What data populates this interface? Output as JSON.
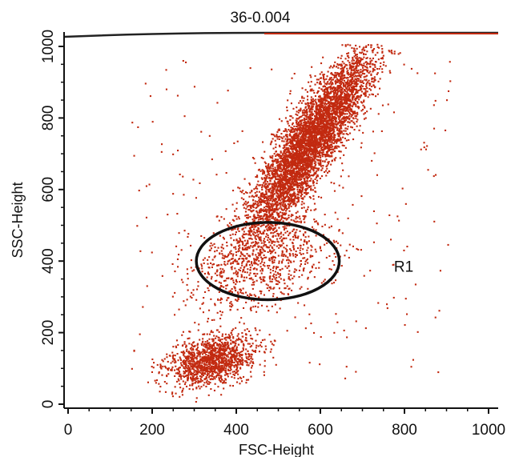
{
  "chart_data": {
    "type": "scatter",
    "title": "36-0.004",
    "xlabel": "FSC-Height",
    "ylabel": "SSC-Height",
    "xlim": [
      0,
      1000
    ],
    "ylim": [
      0,
      1000
    ],
    "xticks": [
      0,
      200,
      400,
      600,
      800,
      1000
    ],
    "yticks": [
      0,
      200,
      400,
      600,
      800,
      1000
    ],
    "grid": false,
    "point_color": "#c22a10",
    "clusters": [
      {
        "center": [
          575,
          730
        ],
        "spread_along": 150,
        "spread_across": 32,
        "angle_deg": 62,
        "points": 5200
      },
      {
        "center": [
          340,
          120
        ],
        "spread_along": 55,
        "spread_across": 32,
        "angle_deg": 25,
        "points": 1300
      },
      {
        "center": [
          460,
          400
        ],
        "spread_along": 95,
        "spread_across": 55,
        "angle_deg": 30,
        "points": 800
      },
      {
        "center": [
          500,
          500
        ],
        "spread_along": 600,
        "spread_across": 600,
        "angle_deg": 0,
        "points": 260
      }
    ],
    "gates": [
      {
        "label": "R1",
        "shape": "ellipse",
        "center": [
          475,
          400
        ],
        "radius_x": 170,
        "radius_y": 108,
        "label_position": [
          775,
          370
        ]
      }
    ]
  }
}
